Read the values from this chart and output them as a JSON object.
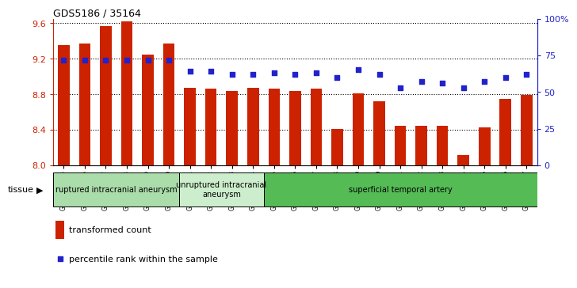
{
  "title": "GDS5186 / 35164",
  "samples": [
    "GSM1306885",
    "GSM1306886",
    "GSM1306887",
    "GSM1306888",
    "GSM1306889",
    "GSM1306890",
    "GSM1306891",
    "GSM1306892",
    "GSM1306893",
    "GSM1306894",
    "GSM1306895",
    "GSM1306896",
    "GSM1306897",
    "GSM1306898",
    "GSM1306899",
    "GSM1306900",
    "GSM1306901",
    "GSM1306902",
    "GSM1306903",
    "GSM1306904",
    "GSM1306905",
    "GSM1306906",
    "GSM1306907"
  ],
  "transformed_count": [
    9.35,
    9.37,
    9.57,
    9.62,
    9.25,
    9.37,
    8.87,
    8.86,
    8.84,
    8.87,
    8.86,
    8.84,
    8.86,
    8.41,
    8.81,
    8.72,
    8.44,
    8.44,
    8.44,
    8.11,
    8.43,
    8.75,
    8.79
  ],
  "percentile_rank": [
    72,
    72,
    72,
    72,
    72,
    72,
    64,
    64,
    62,
    62,
    63,
    62,
    63,
    60,
    65,
    62,
    53,
    57,
    56,
    53,
    57,
    60,
    62
  ],
  "groups": [
    {
      "label": "ruptured intracranial aneurysm",
      "start": 0,
      "end": 6,
      "color": "#aaddaa"
    },
    {
      "label": "unruptured intracranial\naneurysm",
      "start": 6,
      "end": 10,
      "color": "#cceecc"
    },
    {
      "label": "superficial temporal artery",
      "start": 10,
      "end": 23,
      "color": "#55bb55"
    }
  ],
  "ylim_left": [
    8.0,
    9.65
  ],
  "yticks_left": [
    8.0,
    8.4,
    8.8,
    9.2,
    9.6
  ],
  "ylim_right": [
    0,
    100
  ],
  "yticks_right": [
    0,
    25,
    50,
    75,
    100
  ],
  "bar_color": "#cc2200",
  "dot_color": "#2222cc",
  "bar_width": 0.55,
  "plot_bg_color": "#ffffff",
  "grid_color": "black",
  "left_axis_color": "#cc2200",
  "right_axis_color": "#2222cc"
}
